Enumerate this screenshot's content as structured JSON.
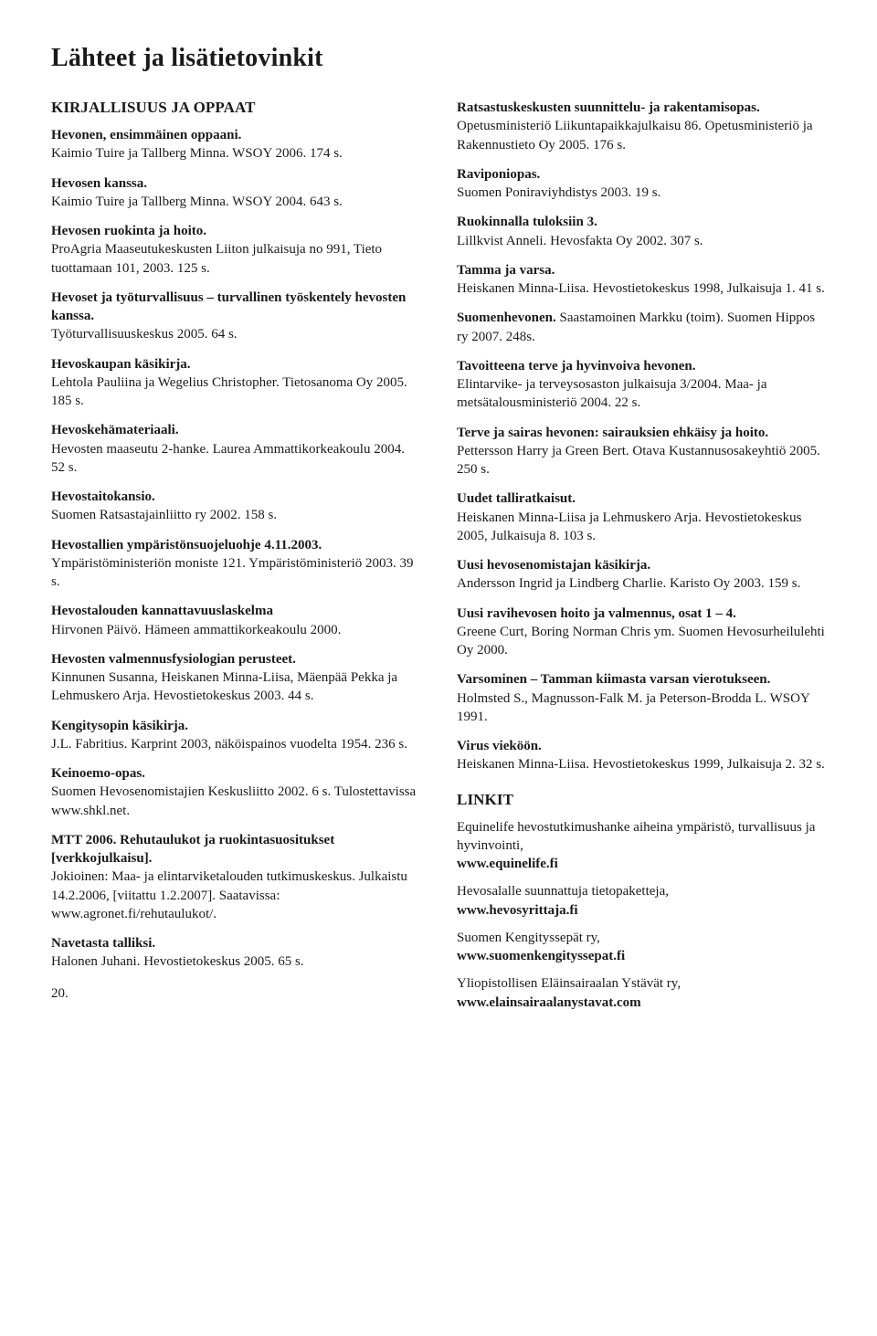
{
  "title": "Lähteet ja lisätietovinkit",
  "left": {
    "section": "KIRJALLISUUS JA OPPAAT",
    "entries": [
      {
        "t": "Hevonen, ensimmäinen oppaani.",
        "d": "Kaimio Tuire ja Tallberg Minna. WSOY 2006. 174 s."
      },
      {
        "t": "Hevosen kanssa.",
        "d": "Kaimio Tuire ja Tallberg Minna. WSOY 2004. 643 s."
      },
      {
        "t": "Hevosen ruokinta ja hoito.",
        "d": "ProAgria Maaseutukeskusten Liiton julkaisuja no 991, Tieto tuottamaan 101, 2003. 125 s."
      },
      {
        "t": "Hevoset ja työturvallisuus – turvallinen työskentely hevosten kanssa.",
        "d": "Työturvallisuuskeskus 2005. 64 s."
      },
      {
        "t": "Hevoskaupan käsikirja.",
        "d": "Lehtola Pauliina ja Wegelius Christopher. Tietosanoma Oy 2005. 185 s."
      },
      {
        "t": "Hevoskehämateriaali.",
        "d": "Hevosten maaseutu 2-hanke. Laurea Ammattikorkeakoulu 2004. 52 s."
      },
      {
        "t": "Hevostaitokansio.",
        "d": "Suomen Ratsastajainliitto ry 2002. 158 s."
      },
      {
        "t": "Hevostallien ympäristönsuojeluohje 4.11.2003.",
        "d": "Ympäristöministeriön moniste 121. Ympäristöministeriö 2003. 39 s."
      },
      {
        "t": "Hevostalouden kannattavuuslaskelma",
        "d": "Hirvonen Päivö. Hämeen ammattikorkeakoulu 2000."
      },
      {
        "t": "Hevosten valmennusfysiologian perusteet.",
        "d": "Kinnunen Susanna, Heiskanen Minna-Liisa, Mäenpää Pekka ja Lehmuskero Arja. Hevostietokeskus 2003. 44 s."
      },
      {
        "t": "Kengitysopin käsikirja.",
        "d": "J.L. Fabritius. Karprint 2003, näköispainos vuodelta 1954. 236 s."
      },
      {
        "t": "Keinoemo-opas.",
        "d": "Suomen Hevosenomistajien Keskusliitto 2002. 6 s. Tulostettavissa www.shkl.net."
      },
      {
        "t": "MTT 2006. Rehutaulukot ja ruokintasuositukset [verkkojulkaisu].",
        "d": "Jokioinen: Maa- ja elintarviketalouden tutkimuskeskus. Julkaistu 14.2.2006, [viitattu 1.2.2007]. Saatavissa: www.agronet.fi/rehutaulukot/."
      },
      {
        "t": "Navetasta talliksi.",
        "d": "Halonen Juhani. Hevostietokeskus 2005. 65 s."
      }
    ]
  },
  "right": {
    "entries": [
      {
        "t": "Ratsastuskeskusten suunnittelu- ja rakentamisopas.",
        "d": "Opetusministeriö Liikuntapaikkajulkaisu 86. Opetusministeriö ja Rakennustieto Oy 2005. 176 s."
      },
      {
        "t": "Raviponiopas.",
        "d": "Suomen Poniraviyhdistys 2003. 19 s."
      },
      {
        "t": "Ruokinnalla tuloksiin 3.",
        "d": "Lillkvist Anneli. Hevosfakta Oy 2002. 307 s."
      },
      {
        "t": "Tamma ja varsa.",
        "d": "Heiskanen Minna-Liisa. Hevostietokeskus 1998, Julkaisuja 1. 41 s."
      },
      {
        "t": "Suomenhevonen.",
        "d": "Saastamoinen Markku (toim). Suomen Hippos ry 2007. 248s.",
        "inline": true
      },
      {
        "t": "Tavoitteena terve ja hyvinvoiva hevonen.",
        "d": "Elintarvike- ja terveysosaston julkaisuja 3/2004. Maa- ja metsätalousministeriö 2004. 22 s."
      },
      {
        "t": "Terve ja sairas hevonen: sairauksien ehkäisy ja hoito.",
        "d": "Pettersson Harry ja Green Bert. Otava Kustannusosakeyhtiö 2005. 250 s."
      },
      {
        "t": "Uudet talliratkaisut.",
        "d": "Heiskanen Minna-Liisa ja Lehmuskero Arja. Hevostietokeskus 2005, Julkaisuja 8. 103 s."
      },
      {
        "t": "Uusi hevosenomistajan käsikirja.",
        "d": "Andersson Ingrid ja Lindberg Charlie. Karisto Oy 2003. 159 s."
      },
      {
        "t": "Uusi ravihevosen hoito ja valmennus, osat 1 – 4.",
        "d": "Greene Curt, Boring Norman Chris ym. Suomen Hevosurheilulehti Oy 2000."
      },
      {
        "t": "Varsominen – Tamman kiimasta varsan vierotukseen.",
        "d": "Holmsted S., Magnusson-Falk M. ja Peterson-Brodda L. WSOY 1991.",
        "inline": true
      },
      {
        "t": "Virus vieköön.",
        "d": "Heiskanen Minna-Liisa. Hevostietokeskus 1999, Julkaisuja 2. 32 s."
      }
    ],
    "links_section": "LINKIT",
    "links": [
      {
        "d": "Equinelife hevostutkimushanke aiheina ympäristö, turvallisuus ja hyvinvointi,",
        "u": "www.equinelife.fi"
      },
      {
        "d": "Hevosalalle suunnattuja tietopaketteja,",
        "u": "www.hevosyrittaja.fi"
      },
      {
        "d": "Suomen Kengityssepät ry,",
        "u": "www.suomenkengityssepat.fi"
      },
      {
        "d": "Yliopistollisen Eläinsairaalan Ystävät ry,",
        "u": "www.elainsairaalanystavat.com"
      }
    ]
  },
  "page_number": "20."
}
